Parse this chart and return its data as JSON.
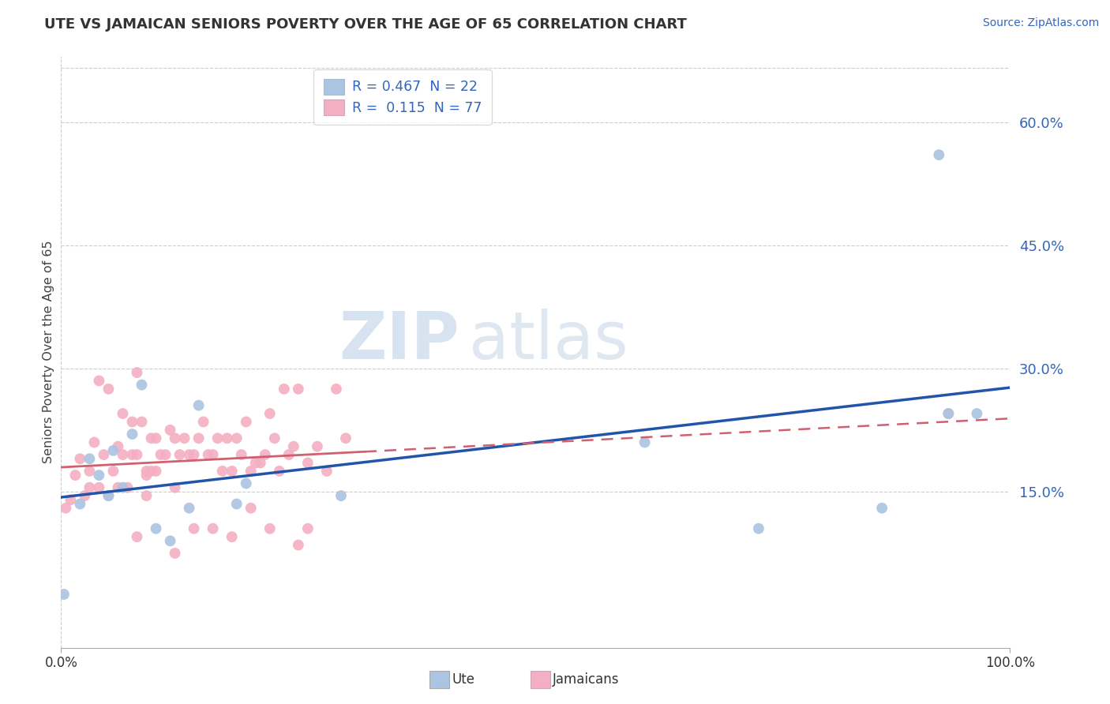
{
  "title": "UTE VS JAMAICAN SENIORS POVERTY OVER THE AGE OF 65 CORRELATION CHART",
  "source": "Source: ZipAtlas.com",
  "ylabel": "Seniors Poverty Over the Age of 65",
  "xlim": [
    0.0,
    1.0
  ],
  "ylim": [
    -0.04,
    0.68
  ],
  "ytick_vals": [
    0.15,
    0.3,
    0.45,
    0.6
  ],
  "ytick_labels": [
    "15.0%",
    "30.0%",
    "45.0%",
    "60.0%"
  ],
  "xtick_vals": [
    0.0,
    1.0
  ],
  "xtick_labels": [
    "0.0%",
    "100.0%"
  ],
  "legend_ute": "R = 0.467  N = 22",
  "legend_jamaican": "R =  0.115  N = 77",
  "ute_color": "#aac4e2",
  "jamaican_color": "#f4afc2",
  "ute_line_color": "#2255aa",
  "jamaican_line_color": "#d06070",
  "background_color": "#ffffff",
  "watermark_zip": "ZIP",
  "watermark_atlas": "atlas",
  "ute_x": [
    0.003,
    0.02,
    0.03,
    0.04,
    0.05,
    0.055,
    0.065,
    0.075,
    0.085,
    0.1,
    0.115,
    0.135,
    0.145,
    0.185,
    0.195,
    0.295,
    0.615,
    0.735,
    0.865,
    0.925,
    0.935,
    0.965
  ],
  "ute_y": [
    0.025,
    0.135,
    0.19,
    0.17,
    0.145,
    0.2,
    0.155,
    0.22,
    0.28,
    0.105,
    0.09,
    0.13,
    0.255,
    0.135,
    0.16,
    0.145,
    0.21,
    0.105,
    0.13,
    0.56,
    0.245,
    0.245
  ],
  "jamaican_x": [
    0.005,
    0.01,
    0.015,
    0.02,
    0.025,
    0.03,
    0.03,
    0.035,
    0.04,
    0.045,
    0.05,
    0.055,
    0.06,
    0.065,
    0.07,
    0.075,
    0.075,
    0.08,
    0.085,
    0.09,
    0.09,
    0.095,
    0.1,
    0.105,
    0.11,
    0.115,
    0.12,
    0.125,
    0.13,
    0.135,
    0.14,
    0.145,
    0.15,
    0.155,
    0.16,
    0.165,
    0.17,
    0.175,
    0.18,
    0.185,
    0.19,
    0.195,
    0.2,
    0.205,
    0.21,
    0.215,
    0.22,
    0.225,
    0.23,
    0.235,
    0.24,
    0.245,
    0.25,
    0.26,
    0.27,
    0.28,
    0.29,
    0.3,
    0.04,
    0.05,
    0.06,
    0.08,
    0.1,
    0.14,
    0.18,
    0.22,
    0.26,
    0.09,
    0.12,
    0.16,
    0.2,
    0.25,
    0.08,
    0.12,
    0.065,
    0.095,
    0.935
  ],
  "jamaican_y": [
    0.13,
    0.14,
    0.17,
    0.19,
    0.145,
    0.155,
    0.175,
    0.21,
    0.155,
    0.195,
    0.145,
    0.175,
    0.155,
    0.195,
    0.155,
    0.195,
    0.235,
    0.195,
    0.235,
    0.175,
    0.145,
    0.175,
    0.215,
    0.195,
    0.195,
    0.225,
    0.215,
    0.195,
    0.215,
    0.195,
    0.195,
    0.215,
    0.235,
    0.195,
    0.195,
    0.215,
    0.175,
    0.215,
    0.175,
    0.215,
    0.195,
    0.235,
    0.175,
    0.185,
    0.185,
    0.195,
    0.245,
    0.215,
    0.175,
    0.275,
    0.195,
    0.205,
    0.275,
    0.185,
    0.205,
    0.175,
    0.275,
    0.215,
    0.285,
    0.275,
    0.205,
    0.295,
    0.175,
    0.105,
    0.095,
    0.105,
    0.105,
    0.17,
    0.155,
    0.105,
    0.13,
    0.085,
    0.095,
    0.075,
    0.245,
    0.215,
    0.245
  ]
}
